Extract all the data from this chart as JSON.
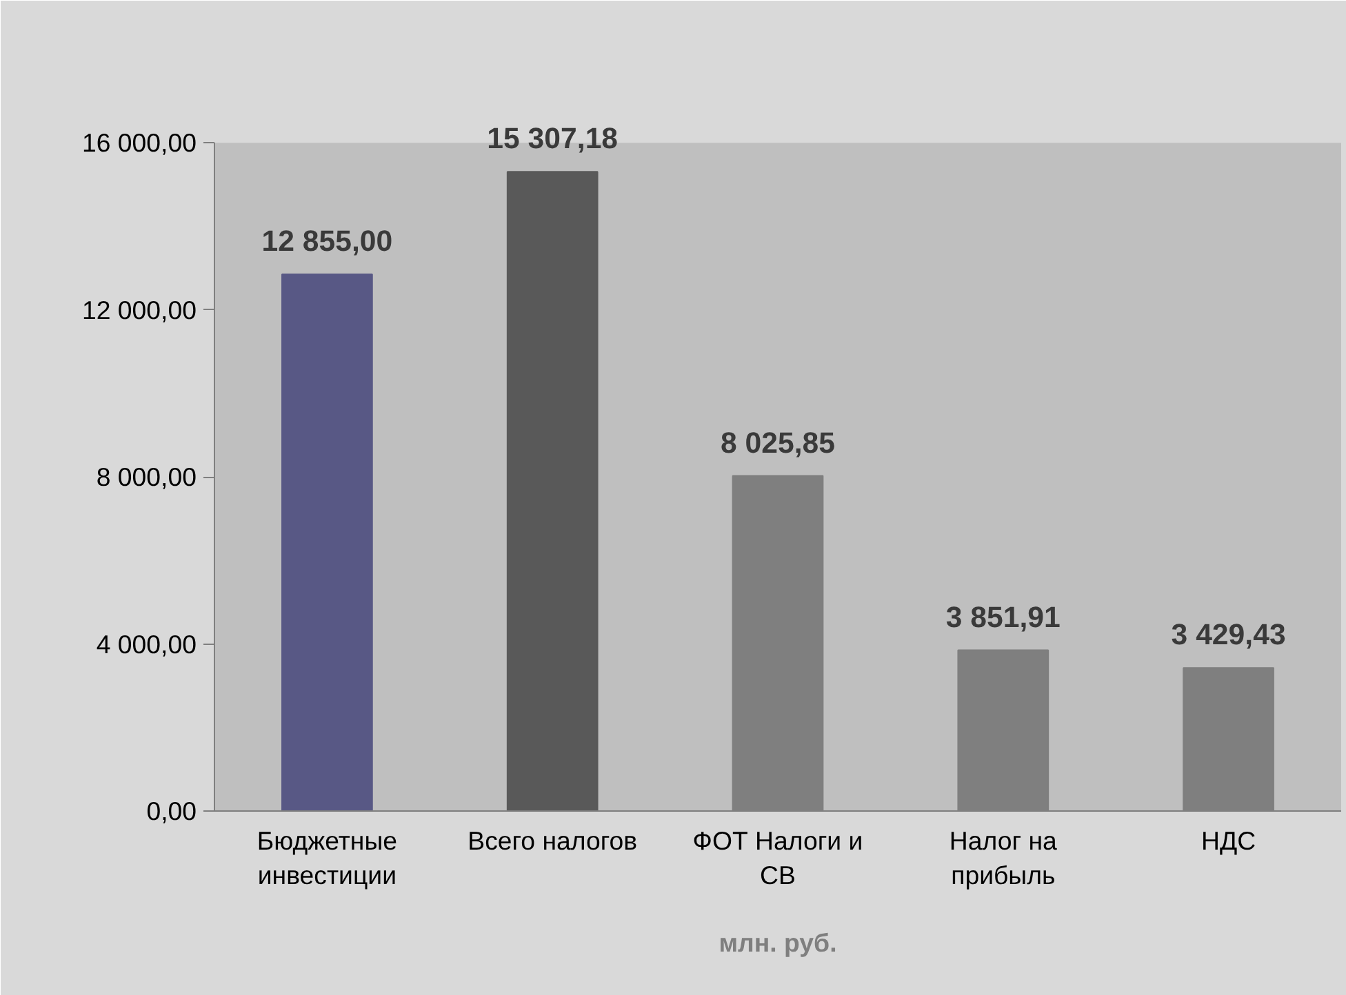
{
  "chart_data": {
    "type": "bar",
    "xlabel": "млн. руб.",
    "categories": [
      "Бюджетные инвестиции",
      "Всего налогов",
      "ФОТ Налоги и СВ",
      "Налог на прибыль",
      "НДС"
    ],
    "values": [
      12855.0,
      15307.18,
      8025.85,
      3851.91,
      3429.43
    ],
    "colors": [
      "#585885",
      "#595959",
      "#7f7f7f",
      "#7f7f7f",
      "#7f7f7f"
    ],
    "value_labels": [
      "12 855,00",
      "15 307,18",
      "8 025,85",
      "3 851,91",
      "3 429,43"
    ],
    "ylim": [
      0,
      16000
    ],
    "yticks": [
      {
        "value": 0,
        "label": "0,00"
      },
      {
        "value": 4000,
        "label": "4 000,00"
      },
      {
        "value": 8000,
        "label": "8 000,00"
      },
      {
        "value": 12000,
        "label": "12 000,00"
      },
      {
        "value": 16000,
        "label": "16 000,00"
      }
    ],
    "grid": false
  }
}
